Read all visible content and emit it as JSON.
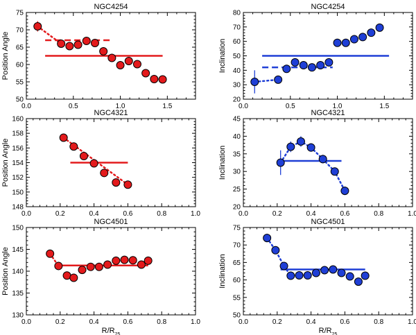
{
  "chart_data": [
    {
      "type": "scatter",
      "title": "NGC4254",
      "xlabel": "",
      "ylabel": "Position Angle",
      "xlim": [
        0.0,
        1.8
      ],
      "ylim": [
        50,
        75
      ],
      "xticks": [
        0.0,
        0.5,
        1.0,
        1.5
      ],
      "yticks": [
        50,
        55,
        60,
        65,
        70,
        75
      ],
      "color": "#e31a1c",
      "series": [
        {
          "name": "points",
          "x": [
            0.12,
            0.37,
            0.46,
            0.55,
            0.64,
            0.73,
            0.82,
            0.91,
            1.0,
            1.09,
            1.18,
            1.27,
            1.36,
            1.45
          ],
          "y": [
            71.0,
            66.0,
            65.3,
            65.7,
            66.8,
            66.2,
            63.8,
            61.9,
            59.8,
            61.0,
            60.1,
            57.5,
            55.8,
            55.7
          ],
          "yerr": [
            1.5,
            0.5,
            0.5,
            0.5,
            0.5,
            0.5,
            0.5,
            0.5,
            0.5,
            0.5,
            0.5,
            0.5,
            0.5,
            0.5
          ]
        },
        {
          "name": "fit-dotted",
          "style": "dotted",
          "x": [
            0.12,
            0.37
          ],
          "y": [
            71.0,
            66.0
          ]
        },
        {
          "name": "inner-dashed",
          "style": "dashed",
          "x": [
            0.2,
            0.9
          ],
          "y": [
            67.0,
            67.0
          ]
        },
        {
          "name": "mean-solid",
          "style": "solid",
          "x": [
            0.2,
            1.45
          ],
          "y": [
            62.5,
            62.5
          ]
        }
      ]
    },
    {
      "type": "scatter",
      "title": "NGC4254",
      "xlabel": "",
      "ylabel": "Inclination",
      "xlim": [
        0.0,
        1.8
      ],
      "ylim": [
        20,
        80
      ],
      "xticks": [
        0.0,
        0.5,
        1.0,
        1.5
      ],
      "yticks": [
        20,
        30,
        40,
        50,
        60,
        70,
        80
      ],
      "color": "#1f3fd6",
      "series": [
        {
          "name": "points",
          "x": [
            0.12,
            0.37,
            0.46,
            0.55,
            0.64,
            0.73,
            0.82,
            0.91,
            1.0,
            1.09,
            1.18,
            1.27,
            1.36,
            1.45
          ],
          "y": [
            32.0,
            33.5,
            41.0,
            45.5,
            43.5,
            42.0,
            43.5,
            45.5,
            59.0,
            59.0,
            61.5,
            63.0,
            66.0,
            69.5
          ],
          "yerr": [
            8.0,
            1.5,
            1.0,
            1.0,
            1.0,
            1.0,
            1.0,
            1.0,
            1.0,
            1.0,
            1.0,
            1.0,
            1.0,
            1.0
          ]
        },
        {
          "name": "fit-dotted",
          "style": "dotted",
          "x": [
            0.12,
            0.37
          ],
          "y": [
            32.0,
            33.5
          ]
        },
        {
          "name": "inner-dashed",
          "style": "dashed",
          "x": [
            0.2,
            0.95
          ],
          "y": [
            42.0,
            42.0
          ]
        },
        {
          "name": "mean-solid",
          "style": "solid",
          "x": [
            0.2,
            1.55
          ],
          "y": [
            50.0,
            50.0
          ]
        }
      ]
    },
    {
      "type": "scatter",
      "title": "NGC4321",
      "xlabel": "",
      "ylabel": "Position Angle",
      "xlim": [
        0.0,
        1.0
      ],
      "ylim": [
        148,
        160
      ],
      "xticks": [
        0.0,
        0.2,
        0.4,
        0.6,
        0.8,
        1.0
      ],
      "yticks": [
        148,
        150,
        152,
        154,
        156,
        158,
        160
      ],
      "color": "#e31a1c",
      "series": [
        {
          "name": "points",
          "x": [
            0.22,
            0.28,
            0.34,
            0.4,
            0.46,
            0.53,
            0.6
          ],
          "y": [
            157.4,
            156.2,
            154.9,
            153.9,
            152.6,
            151.3,
            151.0
          ],
          "yerr": [
            0.5,
            0.3,
            0.3,
            0.3,
            0.3,
            0.3,
            0.3
          ]
        },
        {
          "name": "fit-dotted",
          "style": "dotted",
          "x": [
            0.22,
            0.6
          ],
          "y": [
            157.4,
            151.0
          ]
        },
        {
          "name": "mean-solid",
          "style": "solid",
          "x": [
            0.26,
            0.6
          ],
          "y": [
            154.0,
            154.0
          ]
        }
      ]
    },
    {
      "type": "scatter",
      "title": "NGC4321",
      "xlabel": "",
      "ylabel": "Inclination",
      "xlim": [
        0.0,
        1.0
      ],
      "ylim": [
        20,
        45
      ],
      "xticks": [
        0.0,
        0.2,
        0.4,
        0.6,
        0.8,
        1.0
      ],
      "yticks": [
        20,
        25,
        30,
        35,
        40,
        45
      ],
      "color": "#1f3fd6",
      "series": [
        {
          "name": "points",
          "x": [
            0.22,
            0.28,
            0.34,
            0.4,
            0.47,
            0.54,
            0.6
          ],
          "y": [
            32.5,
            37.0,
            38.5,
            36.8,
            33.5,
            30.0,
            24.5
          ],
          "yerr": [
            3.5,
            1.5,
            1.5,
            1.2,
            1.2,
            1.0,
            1.2
          ]
        },
        {
          "name": "fit-dotted",
          "style": "dotted",
          "x": [
            0.22,
            0.28,
            0.34,
            0.4,
            0.47,
            0.54,
            0.6
          ],
          "y": [
            32.5,
            37.0,
            38.5,
            36.8,
            33.5,
            30.0,
            24.5
          ]
        },
        {
          "name": "mean-solid",
          "style": "solid",
          "x": [
            0.22,
            0.58
          ],
          "y": [
            33.0,
            33.0
          ]
        }
      ]
    },
    {
      "type": "scatter",
      "title": "NGC4501",
      "xlabel": "R/R25",
      "ylabel": "Position Angle",
      "xlim": [
        0.0,
        1.0
      ],
      "ylim": [
        130,
        150
      ],
      "xticks": [
        0.0,
        0.2,
        0.4,
        0.6,
        0.8,
        1.0
      ],
      "yticks": [
        130,
        135,
        140,
        145,
        150
      ],
      "color": "#e31a1c",
      "series": [
        {
          "name": "points",
          "x": [
            0.14,
            0.19,
            0.24,
            0.28,
            0.33,
            0.38,
            0.43,
            0.48,
            0.53,
            0.58,
            0.63,
            0.68,
            0.72
          ],
          "y": [
            144.0,
            141.2,
            139.0,
            138.5,
            140.3,
            141.0,
            141.0,
            141.5,
            142.4,
            142.6,
            142.5,
            141.5,
            142.4
          ],
          "yerr": [
            0.4,
            0.4,
            0.4,
            0.4,
            0.4,
            0.4,
            0.4,
            0.4,
            0.4,
            0.4,
            0.4,
            0.4,
            0.4
          ]
        },
        {
          "name": "fit-dotted",
          "style": "dotted",
          "x": [
            0.14,
            0.19
          ],
          "y": [
            144.0,
            141.2
          ]
        },
        {
          "name": "mean-solid",
          "style": "solid",
          "x": [
            0.18,
            0.72
          ],
          "y": [
            141.3,
            141.3
          ]
        }
      ]
    },
    {
      "type": "scatter",
      "title": "NGC4501",
      "xlabel": "R/R25",
      "ylabel": "Inclination",
      "xlim": [
        0.0,
        1.0
      ],
      "ylim": [
        50,
        75
      ],
      "xticks": [
        0.0,
        0.2,
        0.4,
        0.6,
        0.8,
        1.0
      ],
      "yticks": [
        50,
        55,
        60,
        65,
        70,
        75
      ],
      "color": "#1f3fd6",
      "series": [
        {
          "name": "points",
          "x": [
            0.14,
            0.19,
            0.24,
            0.28,
            0.33,
            0.38,
            0.43,
            0.48,
            0.53,
            0.58,
            0.63,
            0.68,
            0.72
          ],
          "y": [
            72.0,
            68.5,
            64.0,
            61.2,
            61.3,
            61.3,
            62.0,
            62.8,
            63.0,
            62.0,
            61.0,
            59.5,
            61.2
          ],
          "yerr": [
            1.2,
            1.0,
            0.8,
            0.5,
            0.5,
            0.5,
            0.5,
            0.5,
            0.5,
            0.5,
            0.5,
            0.5,
            0.5
          ]
        },
        {
          "name": "fit-dotted",
          "style": "dotted",
          "x": [
            0.14,
            0.19,
            0.24,
            0.28
          ],
          "y": [
            72.0,
            68.5,
            64.0,
            61.2
          ]
        },
        {
          "name": "mean-solid",
          "style": "solid",
          "x": [
            0.22,
            0.72
          ],
          "y": [
            63.0,
            63.0
          ]
        }
      ]
    }
  ]
}
